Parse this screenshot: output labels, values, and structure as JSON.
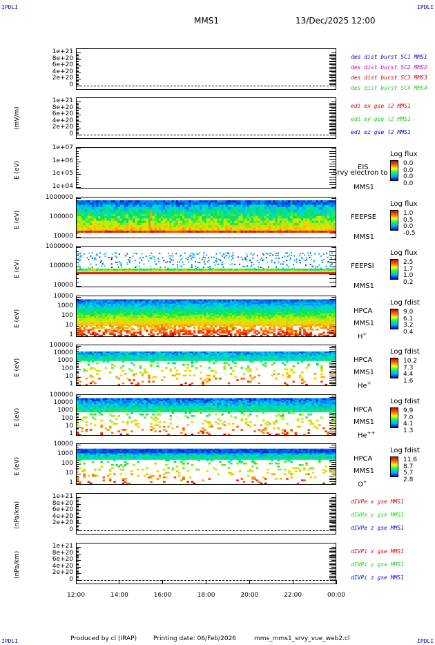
{
  "corner_labels": {
    "tl": "IPDLI",
    "tr": "IPDLI",
    "bl": "IPDLI",
    "br": "IPDLI"
  },
  "header": {
    "mission": "MMS1",
    "datetime": "13/Dec/2025 12:00"
  },
  "footer": {
    "producer": "Produced by cl (IRAP)",
    "printing": "Printing date: 06/Feb/2026",
    "file": "mms_mms1_srvy_vue_web2.cl"
  },
  "x_ticks": [
    "12:00",
    "14:00",
    "16:00",
    "18:00",
    "20:00",
    "22:00",
    "00:00"
  ],
  "colors": {
    "red": "#d40000",
    "green": "#22cc22",
    "blue": "#0000cc",
    "magenta": "#cc00cc"
  },
  "chart_data": [
    {
      "type": "line",
      "id": "p1",
      "ylabel": "",
      "yticks": [
        "1e+21",
        "8e+20",
        "6e+20",
        "4e+20",
        "2e+20",
        "0"
      ],
      "ylim": [
        0,
        1e+21
      ],
      "legend": [
        {
          "text": "des dist burst SC1 MMS1",
          "color": "#0000cc"
        },
        {
          "text": "des dist burst SC2 MMS2",
          "color": "#cc00cc"
        },
        {
          "text": "des dist burst SC3 MMS3",
          "color": "#d40000"
        },
        {
          "text": "des dist burst SC4 MMS4",
          "color": "#22cc22"
        }
      ]
    },
    {
      "type": "line",
      "id": "p2",
      "ylabel": "(mV/m)",
      "yticks": [
        "1e+21",
        "8e+20",
        "6e+20",
        "4e+20",
        "2e+20",
        "0"
      ],
      "ylim": [
        0,
        1e+21
      ],
      "legend": [
        {
          "text": "edi ex gse l2 MMS1",
          "color": "#d40000"
        },
        {
          "text": "edi ey gse l2 MMS1",
          "color": "#22cc22"
        },
        {
          "text": "edi ez gse l2 MMS1",
          "color": "#0000cc"
        }
      ]
    },
    {
      "type": "heatmap",
      "id": "p3",
      "ylabel": "E (eV)",
      "yticks": [
        "1e+07",
        "1e+06",
        "1e+05",
        "1e+04"
      ],
      "instrument": [
        "EIS",
        "MMS1"
      ],
      "overlay": "Srvy electron to",
      "cbar_title": "Log flux",
      "cbar_values": [
        "0.0",
        "0.0",
        "0.0",
        "0.0"
      ]
    },
    {
      "type": "heatmap",
      "id": "p4",
      "ylabel": "E (eV)",
      "yticks": [
        "1000000",
        "100000",
        "10000"
      ],
      "instrument": [
        "FEEPSE",
        "MMS1"
      ],
      "cbar_title": "Log flux",
      "cbar_values": [
        "1.0",
        "0.5",
        "0.0",
        "-0.5"
      ]
    },
    {
      "type": "heatmap",
      "id": "p5",
      "ylabel": "E (eV)",
      "yticks": [
        "1000000",
        "100000",
        "10000"
      ],
      "instrument": [
        "FEEPSI",
        "MMS1"
      ],
      "cbar_title": "Log flux",
      "cbar_values": [
        "2.5",
        "1.7",
        "1.0",
        "0.2"
      ]
    },
    {
      "type": "heatmap",
      "id": "p6",
      "ylabel": "E (eV)",
      "yticks": [
        "10000",
        "1000",
        "100",
        "10",
        "1"
      ],
      "instrument": [
        "HPCA",
        "MMS1"
      ],
      "species": "H",
      "sup": "+",
      "cbar_title": "Log fdist",
      "cbar_values": [
        "9.0",
        "6.1",
        "3.2",
        "0.4"
      ]
    },
    {
      "type": "heatmap",
      "id": "p7",
      "ylabel": "E (eV)",
      "yticks": [
        "100000",
        "10000",
        "1000",
        "100",
        "10",
        "1"
      ],
      "instrument": [
        "HPCA",
        "MMS1"
      ],
      "species": "He",
      "sup": "+",
      "cbar_title": "Log fdist",
      "cbar_values": [
        "10.2",
        "7.3",
        "4.4",
        "1.6"
      ]
    },
    {
      "type": "heatmap",
      "id": "p8",
      "ylabel": "E (eV)",
      "yticks": [
        "100000",
        "10000",
        "1000",
        "100",
        "10",
        "1"
      ],
      "instrument": [
        "HPCA",
        "MMS1"
      ],
      "species": "He",
      "sup": "++",
      "cbar_title": "Log fdist",
      "cbar_values": [
        "9.9",
        "7.0",
        "4.1",
        "1.3"
      ]
    },
    {
      "type": "heatmap",
      "id": "p9",
      "ylabel": "E (eV)",
      "yticks": [
        "10000",
        "1000",
        "100",
        "10",
        "1"
      ],
      "instrument": [
        "HPCA",
        "MMS1"
      ],
      "species": "O",
      "sup": "+",
      "cbar_title": "Log fdist",
      "cbar_values": [
        "11.6",
        "8.7",
        "5.7",
        "2.8"
      ]
    },
    {
      "type": "line",
      "id": "p10",
      "ylabel": "(nPa/km)",
      "yticks": [
        "1e+21",
        "8e+20",
        "6e+20",
        "4e+20",
        "2e+20",
        "0"
      ],
      "ylim": [
        0,
        1e+21
      ],
      "legend": [
        {
          "text": "dIVPe x gse MMS1",
          "color": "#d40000"
        },
        {
          "text": "dIVPe y gse MMS1",
          "color": "#22cc22"
        },
        {
          "text": "dIVPe z gse MMS1",
          "color": "#0000cc"
        }
      ]
    },
    {
      "type": "line",
      "id": "p11",
      "ylabel": "(nPa/km)",
      "yticks": [
        "1e+21",
        "8e+20",
        "6e+20",
        "4e+20",
        "2e+20",
        "0"
      ],
      "ylim": [
        0,
        1e+21
      ],
      "legend": [
        {
          "text": "dIVPi x gse MMS1",
          "color": "#d40000"
        },
        {
          "text": "dIVPi y gse MMS1",
          "color": "#22cc22"
        },
        {
          "text": "dIVPi z gse MMS1",
          "color": "#0000cc"
        }
      ]
    }
  ]
}
